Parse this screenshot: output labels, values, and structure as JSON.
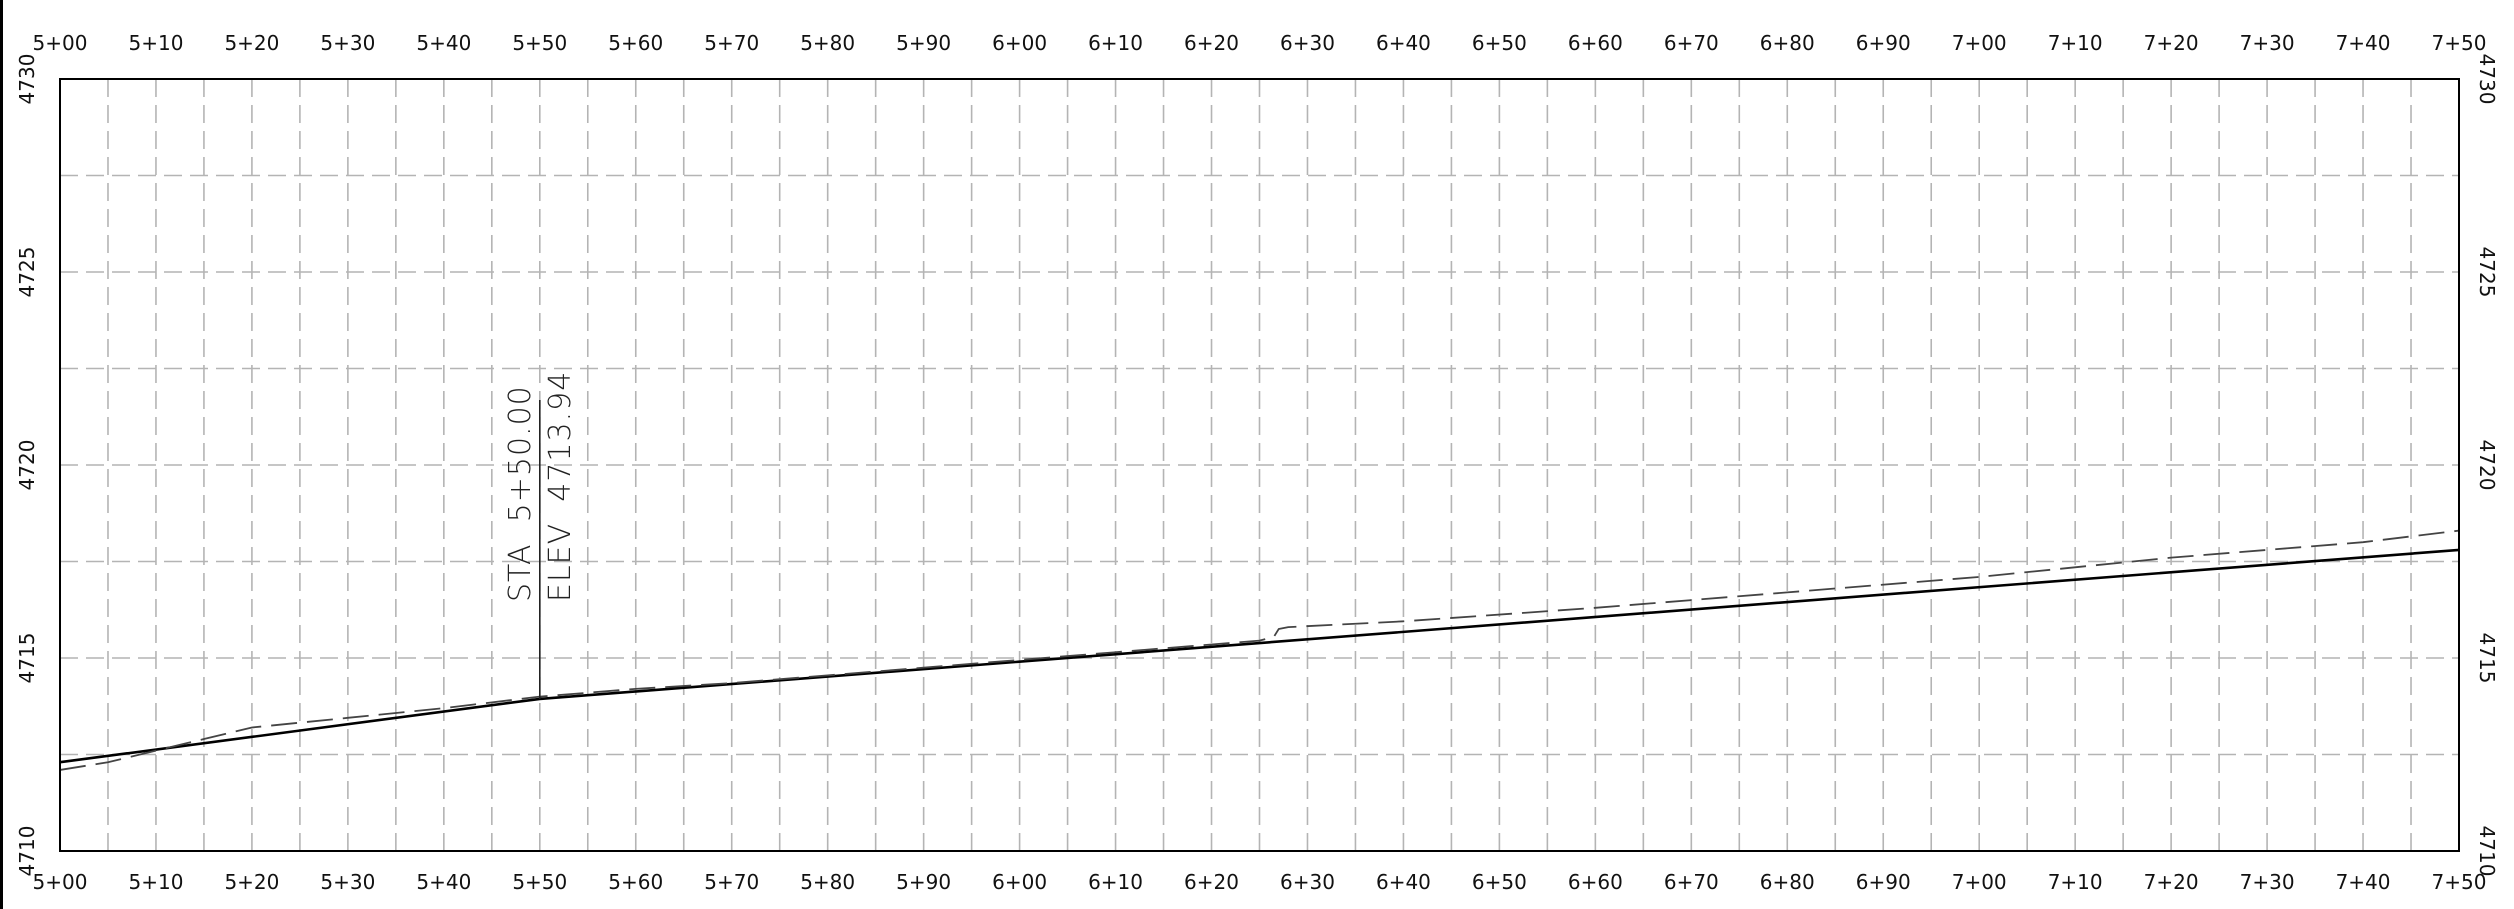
{
  "chart_data": {
    "type": "line",
    "x_range": [
      500,
      750
    ],
    "y_range": [
      4710,
      4730
    ],
    "x_major_step": 10,
    "x_minor_step": 5,
    "y_major_step": 5,
    "y_minor_step": 2.5,
    "grid": true,
    "x_tick_labels": [
      "5+00",
      "5+10",
      "5+20",
      "5+30",
      "5+40",
      "5+50",
      "5+60",
      "5+70",
      "5+80",
      "5+90",
      "6+00",
      "6+10",
      "6+20",
      "6+30",
      "6+40",
      "6+50",
      "6+60",
      "6+70",
      "6+80",
      "6+90",
      "7+00",
      "7+10",
      "7+20",
      "7+30",
      "7+40",
      "7+50"
    ],
    "y_tick_labels": [
      "4710",
      "4715",
      "4720",
      "4725",
      "4730"
    ],
    "series": [
      {
        "style": "solid",
        "color": "#000000",
        "x": [
          500,
          550,
          750
        ],
        "y": [
          4712.3,
          4713.94,
          4717.8
        ]
      },
      {
        "style": "dashed",
        "color": "#444444",
        "x": [
          500,
          505,
          515,
          520,
          530,
          540,
          550,
          560,
          570,
          580,
          590,
          600,
          610,
          620,
          625,
          626.5,
          627,
          628,
          640,
          660,
          680,
          700,
          720,
          740,
          750
        ],
        "y": [
          4712.1,
          4712.3,
          4712.9,
          4713.2,
          4713.45,
          4713.7,
          4714.0,
          4714.2,
          4714.35,
          4714.55,
          4714.75,
          4714.95,
          4715.15,
          4715.35,
          4715.45,
          4715.55,
          4715.75,
          4715.8,
          4715.95,
          4716.3,
          4716.7,
          4717.1,
          4717.6,
          4718.0,
          4718.3
        ]
      }
    ],
    "annotations": [
      {
        "station_value": 550,
        "elevation_value": 4713.94,
        "lines": [
          "STA  5+50.00",
          "ELEV  4713.94"
        ]
      }
    ]
  },
  "colors": {
    "grid": "#b4b4b4",
    "frame": "#000000",
    "label_text": "#111111"
  }
}
